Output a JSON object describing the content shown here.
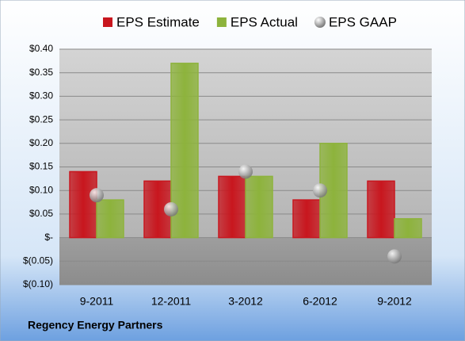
{
  "chart_data": {
    "type": "bar",
    "footer": "Regency Energy Partners",
    "categories": [
      "9-2011",
      "12-2011",
      "3-2012",
      "6-2012",
      "9-2012"
    ],
    "series": [
      {
        "name": "EPS Estimate",
        "color": "#c8161e",
        "values": [
          0.14,
          0.12,
          0.13,
          0.08,
          0.12
        ]
      },
      {
        "name": "EPS Actual",
        "color": "#8db33c",
        "values": [
          0.08,
          0.37,
          0.13,
          0.2,
          0.04
        ]
      },
      {
        "name": "EPS GAAP",
        "color": "#9a9a9a",
        "type": "scatter",
        "values": [
          0.09,
          0.06,
          0.14,
          0.1,
          -0.04
        ]
      }
    ],
    "ylim": [
      -0.1,
      0.4
    ],
    "yticks": [
      {
        "value": -0.1,
        "label": "$(0.10)"
      },
      {
        "value": -0.05,
        "label": "$(0.05)"
      },
      {
        "value": 0,
        "label": "$-"
      },
      {
        "value": 0.05,
        "label": "$0.05"
      },
      {
        "value": 0.1,
        "label": "$0.10"
      },
      {
        "value": 0.15,
        "label": "$0.15"
      },
      {
        "value": 0.2,
        "label": "$0.20"
      },
      {
        "value": 0.25,
        "label": "$0.25"
      },
      {
        "value": 0.3,
        "label": "$0.30"
      },
      {
        "value": 0.35,
        "label": "$0.35"
      },
      {
        "value": 0.4,
        "label": "$0.40"
      }
    ],
    "grid": true
  }
}
